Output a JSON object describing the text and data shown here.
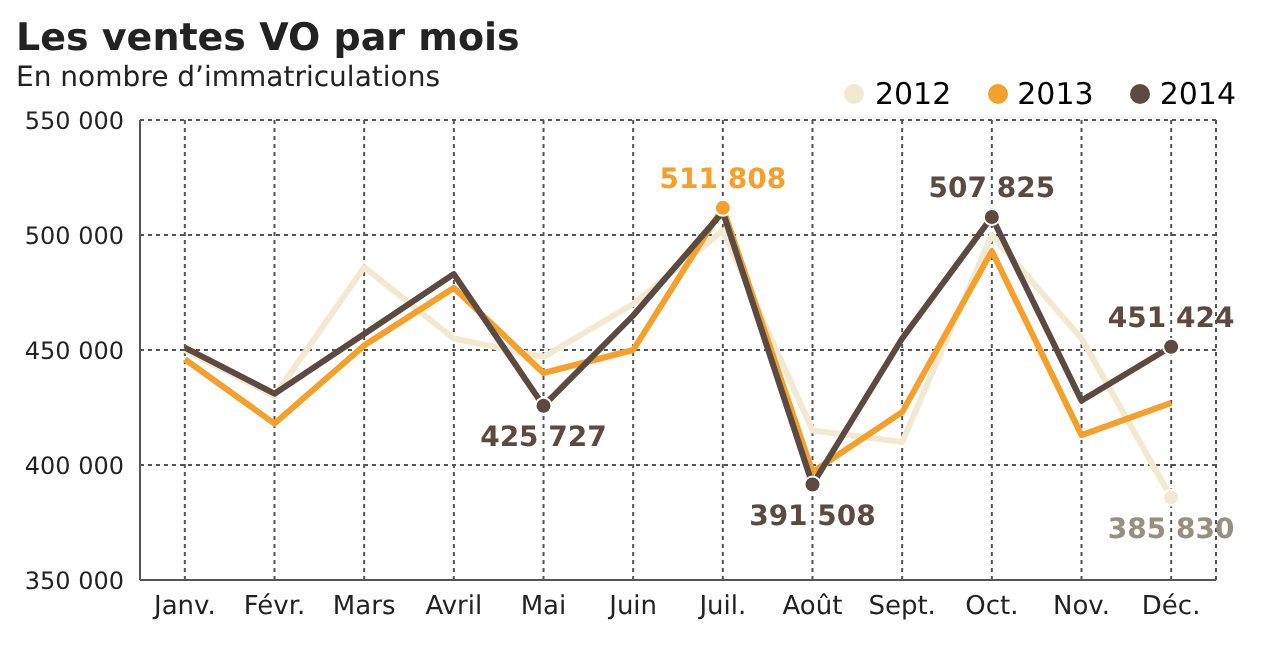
{
  "chart_data": {
    "type": "line",
    "title": "Les ventes VO par mois",
    "subtitle": "En nombre d’immatriculations",
    "categories": [
      "Janv.",
      "Févr.",
      "Mars",
      "Avril",
      "Mai",
      "Juin",
      "Juil.",
      "Août",
      "Sept.",
      "Oct.",
      "Nov.",
      "Déc."
    ],
    "series": [
      {
        "name": "2012",
        "color": "#f1e9d2",
        "values": [
          450000,
          430000,
          486000,
          455000,
          447000,
          470000,
          502000,
          415000,
          410000,
          500000,
          455000,
          385830
        ],
        "value_labels": [
          null,
          null,
          null,
          null,
          null,
          null,
          null,
          null,
          null,
          null,
          null,
          "385 830"
        ]
      },
      {
        "name": "2013",
        "color": "#f5a02a",
        "values": [
          446000,
          418000,
          452000,
          477000,
          440000,
          450000,
          511808,
          397000,
          423000,
          493000,
          413000,
          427000
        ],
        "value_labels": [
          null,
          null,
          null,
          null,
          null,
          null,
          "511 808",
          null,
          null,
          null,
          null,
          null
        ]
      },
      {
        "name": "2014",
        "color": "#5a4a42",
        "values": [
          451000,
          431000,
          457000,
          483000,
          425727,
          465000,
          510000,
          391508,
          455000,
          507825,
          428000,
          451424
        ],
        "value_labels": [
          null,
          null,
          null,
          null,
          "425 727",
          null,
          null,
          "391 508",
          null,
          "507 825",
          null,
          "451 424"
        ]
      }
    ],
    "ylim": [
      350000,
      550000
    ],
    "yticks": [
      {
        "value": 350000,
        "label": "350 000"
      },
      {
        "value": 400000,
        "label": "400 000"
      },
      {
        "value": 450000,
        "label": "450 000"
      },
      {
        "value": 500000,
        "label": "500 000"
      },
      {
        "value": 550000,
        "label": "550 000"
      }
    ],
    "grid": true,
    "legend": "top right",
    "marker": "none",
    "line_style": "solid"
  }
}
